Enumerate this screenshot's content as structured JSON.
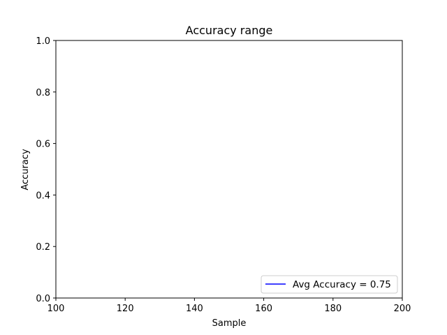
{
  "chart_data": {
    "type": "line",
    "title": "Accuracy range",
    "xlabel": "Sample",
    "ylabel": "Accuracy",
    "xlim": [
      100,
      200
    ],
    "ylim": [
      0.0,
      1.0
    ],
    "xticks": [
      100,
      120,
      140,
      160,
      180,
      200
    ],
    "yticks": [
      0.0,
      0.2,
      0.4,
      0.6,
      0.8,
      1.0
    ],
    "xtick_labels": [
      "100",
      "120",
      "140",
      "160",
      "180",
      "200"
    ],
    "ytick_labels": [
      "0.0",
      "0.2",
      "0.4",
      "0.6",
      "0.8",
      "1.0"
    ],
    "grid": false,
    "series": [
      {
        "name": "Avg Accuracy = 0.75",
        "color": "#0000ff",
        "x": [],
        "y": []
      }
    ],
    "legend": {
      "position": "lower-right",
      "entries": [
        "Avg Accuracy = 0.75"
      ]
    }
  }
}
